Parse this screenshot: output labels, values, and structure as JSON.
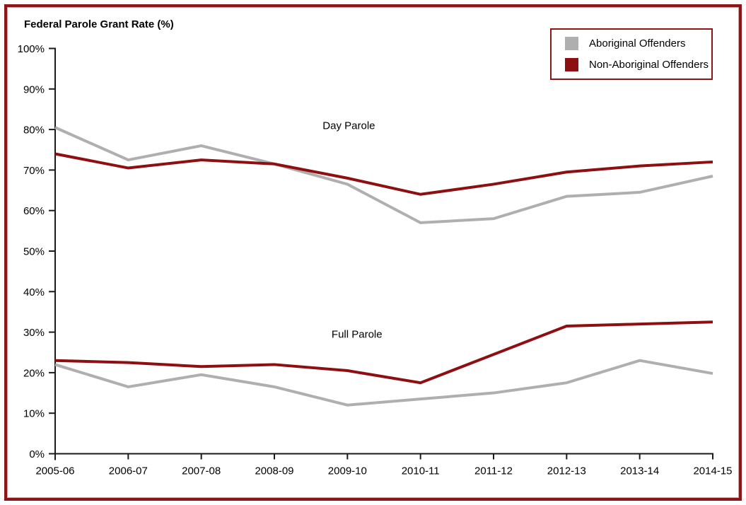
{
  "page": {
    "border_color": "#8B1518",
    "background_color": "#FFFFFF",
    "axis_color": "#1A1A1A"
  },
  "chart_data": {
    "type": "line",
    "title": "Federal Parole Grant Rate (%)",
    "x_categories": [
      "2005-06",
      "2006-07",
      "2007-08",
      "2008-09",
      "2009-10",
      "2010-11",
      "2011-12",
      "2012-13",
      "2013-14",
      "2014-15"
    ],
    "ylim": [
      0,
      100
    ],
    "ytick_step": 10,
    "ytick_suffix": "%",
    "grid": false,
    "legend_position": "top-right",
    "legend": [
      {
        "label": "Aboriginal Offenders",
        "color": "#AFAFAF"
      },
      {
        "label": "Non-Aboriginal Offenders",
        "color": "#8E0F12"
      }
    ],
    "annotations": [
      {
        "text": "Day Parole",
        "x_index": 4.02,
        "y_value": 81.0
      },
      {
        "text": "Full Parole",
        "x_index": 4.13,
        "y_value": 29.5
      }
    ],
    "series": [
      {
        "name": "Day Parole - Aboriginal Offenders",
        "group": "Day Parole",
        "legend": "Aboriginal Offenders",
        "color": "#AFAFAF",
        "values": [
          80.5,
          72.5,
          76,
          71.5,
          66.5,
          57,
          58,
          63.5,
          64.5,
          68.5
        ]
      },
      {
        "name": "Full Parole - Aboriginal Offenders",
        "group": "Full Parole",
        "legend": "Aboriginal Offenders",
        "color": "#AFAFAF",
        "values": [
          22,
          16.5,
          19.5,
          16.5,
          12,
          13.5,
          15,
          17.5,
          23,
          19.8
        ]
      },
      {
        "name": "Day Parole - Non-Aboriginal Offenders",
        "group": "Day Parole",
        "legend": "Non-Aboriginal Offenders",
        "color": "#8E0F12",
        "values": [
          74,
          70.5,
          72.5,
          71.5,
          68,
          64,
          66.5,
          69.5,
          71,
          72
        ]
      },
      {
        "name": "Full Parole - Non-Aboriginal Offenders",
        "group": "Full Parole",
        "legend": "Non-Aboriginal Offenders",
        "color": "#8E0F12",
        "values": [
          23,
          22.5,
          21.5,
          22,
          20.5,
          17.5,
          24.5,
          31.5,
          32,
          32.5
        ]
      }
    ]
  }
}
